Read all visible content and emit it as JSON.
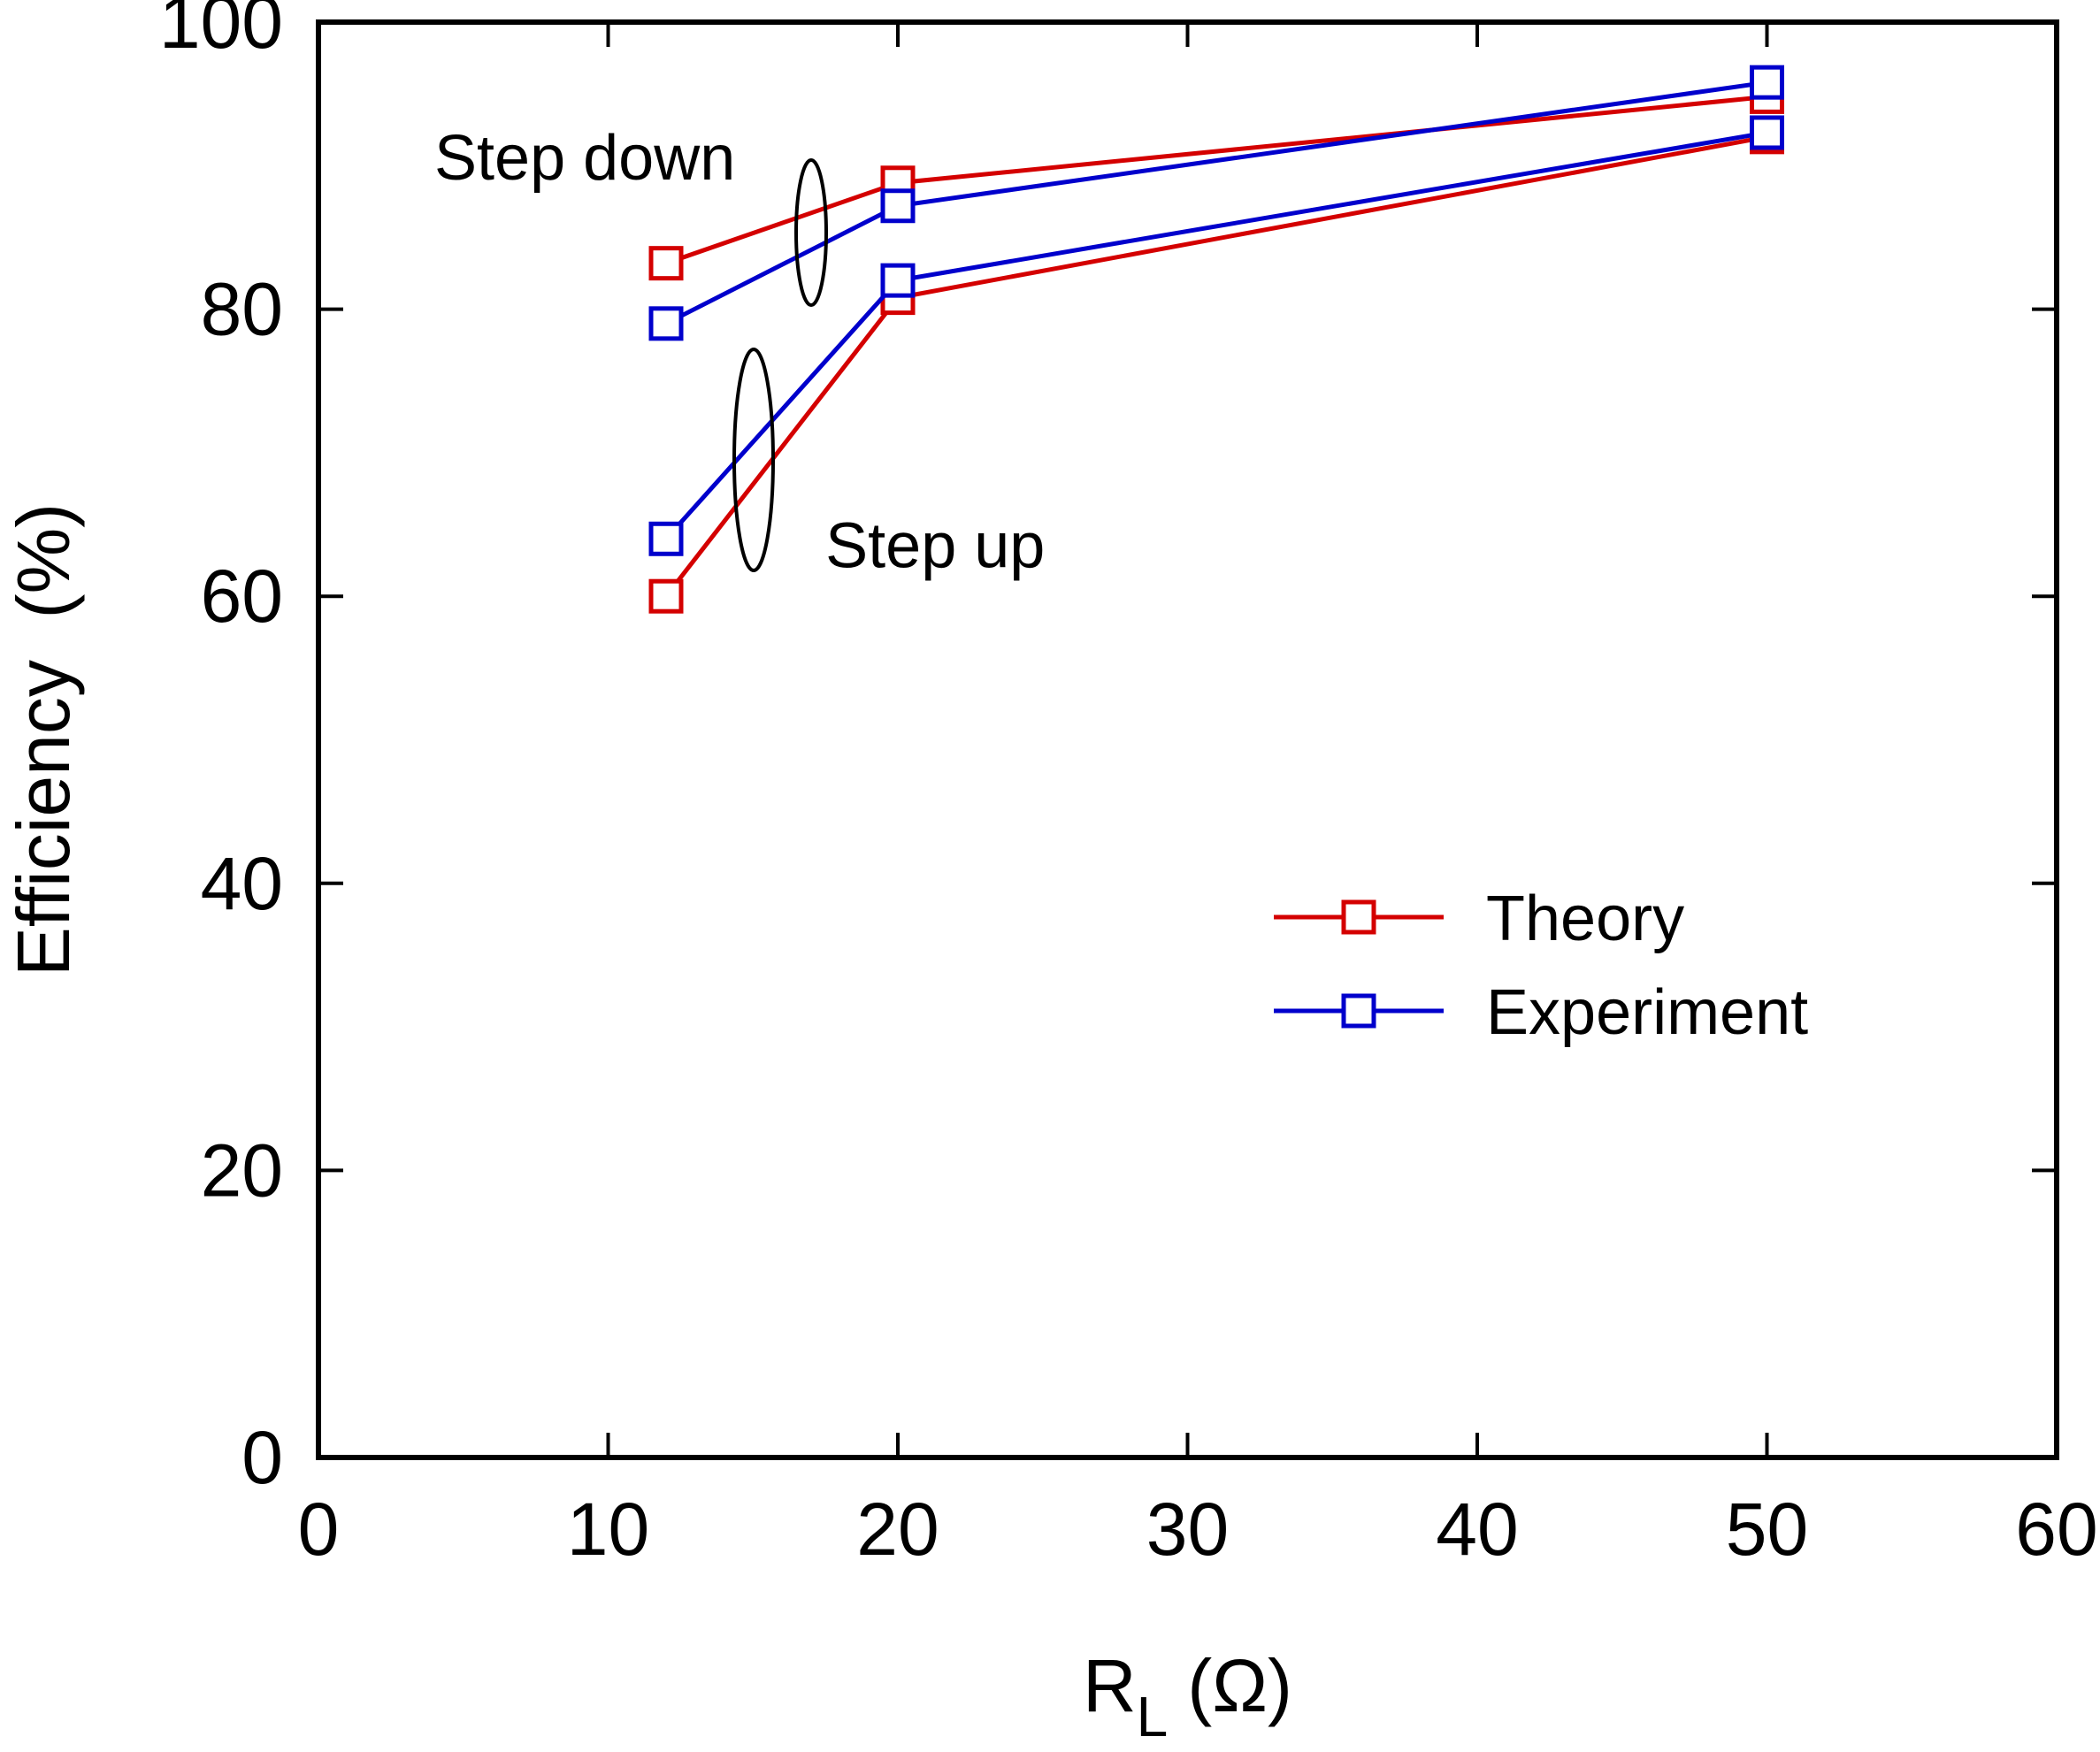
{
  "chart_data": {
    "type": "line",
    "title": "",
    "xlabel": {
      "main": "R",
      "subscript": "L",
      "unit": "(Ω)"
    },
    "ylabel": "Efficiency  (%)",
    "xlim": [
      0,
      60
    ],
    "ylim": [
      0,
      100
    ],
    "xticks": [
      0,
      10,
      20,
      30,
      40,
      50,
      60
    ],
    "yticks": [
      0,
      20,
      40,
      60,
      80,
      100
    ],
    "grid": false,
    "legend_position": "center-right",
    "legend": [
      {
        "name": "Theory",
        "color": "#d40000"
      },
      {
        "name": "Experiment",
        "color": "#0000cc"
      }
    ],
    "series": [
      {
        "name": "Theory",
        "group": "Step down",
        "color": "#d40000",
        "marker": "square-open",
        "x": [
          12,
          20,
          50
        ],
        "y": [
          83.2,
          88.8,
          94.8
        ]
      },
      {
        "name": "Experiment",
        "group": "Step down",
        "color": "#0000cc",
        "marker": "square-open",
        "x": [
          12,
          20,
          50
        ],
        "y": [
          79.0,
          87.2,
          95.8
        ]
      },
      {
        "name": "Theory",
        "group": "Step up",
        "color": "#d40000",
        "marker": "square-open",
        "x": [
          12,
          20,
          50
        ],
        "y": [
          60.0,
          80.8,
          92.0
        ]
      },
      {
        "name": "Experiment",
        "group": "Step up",
        "color": "#0000cc",
        "marker": "square-open",
        "x": [
          12,
          20,
          50
        ],
        "y": [
          64.0,
          82.0,
          92.3
        ]
      }
    ],
    "annotations": [
      {
        "text": "Step down",
        "x": 4.0,
        "y": 90.5
      },
      {
        "text": "Step up",
        "x": 17.5,
        "y": 63.5
      }
    ]
  }
}
